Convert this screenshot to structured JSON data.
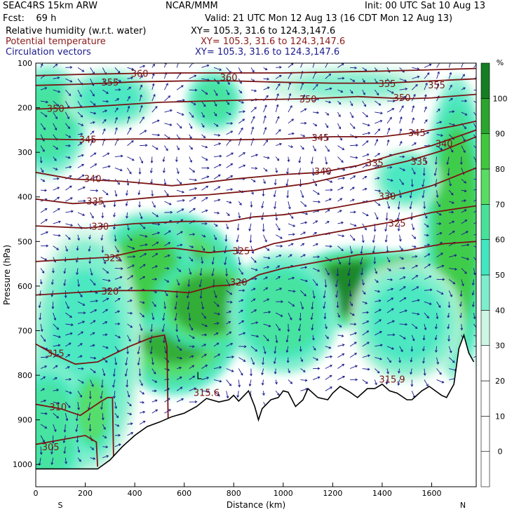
{
  "header": {
    "model": "SEAC4RS 15km ARW",
    "forecast": "Fcst:    69 h",
    "org": "NCAR/MMM",
    "init": "Init: 00 UTC Sat 10 Aug 13",
    "valid": "Valid: 21 UTC Mon 12 Aug 13 (16 CDT Mon 12 Aug 13)"
  },
  "fields": [
    {
      "name": "Relative humidity (w.r.t. water)",
      "xy": "XY= 105.3, 31.6 to 124.3,147.6",
      "color": "#000000"
    },
    {
      "name": "Potential temperature",
      "xy": "XY= 105.3, 31.6 to 124.3,147.6",
      "color": "#8b1a1a"
    },
    {
      "name": "Circulation vectors",
      "xy": "XY= 105.3, 31.6 to 124.3,147.6",
      "color": "#1a1a8c"
    }
  ],
  "chart_data": {
    "type": "heatmap",
    "xlabel": "Distance (km)",
    "ylabel": "Pressure (hPa)",
    "xlim": [
      0,
      1780
    ],
    "ylim": [
      1050,
      100
    ],
    "x_ticks": [
      0,
      200,
      400,
      600,
      800,
      1000,
      1200,
      1400,
      1600
    ],
    "y_ticks": [
      100,
      200,
      300,
      400,
      500,
      600,
      700,
      800,
      900,
      1000
    ],
    "end_labels": {
      "left": "S",
      "right": "N"
    },
    "colorbar": {
      "unit": "%",
      "levels": [
        -10,
        0,
        10,
        20,
        30,
        40,
        50,
        60,
        70,
        80,
        90,
        100,
        110
      ],
      "tick_labels": [
        0,
        10,
        20,
        30,
        40,
        50,
        60,
        70,
        80,
        90,
        100
      ],
      "colors": [
        "#ffffff",
        "#ffffff",
        "#ffffff",
        "#ffffff",
        "#cdf6e4",
        "#7deecd",
        "#42e6c0",
        "#47e29a",
        "#58dd63",
        "#40c83d",
        "#2aa52e",
        "#157d24"
      ]
    },
    "terrain": [
      [
        0,
        1010
      ],
      [
        250,
        1010
      ],
      [
        300,
        990
      ],
      [
        350,
        960
      ],
      [
        400,
        935
      ],
      [
        450,
        915
      ],
      [
        500,
        905
      ],
      [
        550,
        893
      ],
      [
        600,
        885
      ],
      [
        650,
        870
      ],
      [
        690,
        852
      ],
      [
        740,
        860
      ],
      [
        780,
        855
      ],
      [
        800,
        845
      ],
      [
        820,
        858
      ],
      [
        860,
        835
      ],
      [
        885,
        870
      ],
      [
        900,
        900
      ],
      [
        915,
        875
      ],
      [
        950,
        855
      ],
      [
        980,
        850
      ],
      [
        1000,
        835
      ],
      [
        1020,
        838
      ],
      [
        1050,
        870
      ],
      [
        1080,
        855
      ],
      [
        1100,
        830
      ],
      [
        1140,
        850
      ],
      [
        1180,
        855
      ],
      [
        1200,
        840
      ],
      [
        1230,
        825
      ],
      [
        1270,
        838
      ],
      [
        1300,
        850
      ],
      [
        1340,
        830
      ],
      [
        1370,
        830
      ],
      [
        1400,
        820
      ],
      [
        1430,
        835
      ],
      [
        1460,
        840
      ],
      [
        1500,
        855
      ],
      [
        1520,
        855
      ],
      [
        1560,
        835
      ],
      [
        1590,
        825
      ],
      [
        1640,
        845
      ],
      [
        1660,
        850
      ],
      [
        1690,
        820
      ],
      [
        1710,
        740
      ],
      [
        1730,
        710
      ],
      [
        1750,
        750
      ],
      [
        1770,
        770
      ]
    ],
    "theta_contours": [
      {
        "label": "305",
        "points": [
          [
            0,
            955
          ],
          [
            100,
            945
          ],
          [
            200,
            935
          ],
          [
            245,
            950
          ],
          [
            250,
            1005
          ]
        ]
      },
      {
        "label": "310",
        "points": [
          [
            0,
            865
          ],
          [
            100,
            875
          ],
          [
            180,
            890
          ],
          [
            260,
            860
          ],
          [
            290,
            850
          ],
          [
            310,
            850
          ],
          [
            315,
            1000
          ]
        ]
      },
      {
        "label": "315",
        "points": [
          [
            0,
            730
          ],
          [
            80,
            755
          ],
          [
            160,
            775
          ],
          [
            250,
            770
          ],
          [
            380,
            735
          ],
          [
            470,
            715
          ],
          [
            520,
            710
          ],
          [
            530,
            735
          ],
          [
            535,
            905
          ]
        ]
      },
      {
        "label": "320",
        "points": [
          [
            0,
            620
          ],
          [
            150,
            615
          ],
          [
            300,
            610
          ],
          [
            500,
            610
          ],
          [
            620,
            615
          ],
          [
            720,
            600
          ],
          [
            780,
            598
          ],
          [
            850,
            590
          ],
          [
            900,
            575
          ],
          [
            1000,
            560
          ],
          [
            1100,
            550
          ],
          [
            1300,
            530
          ],
          [
            1500,
            520
          ],
          [
            1650,
            505
          ],
          [
            1780,
            500
          ]
        ]
      },
      {
        "label": "325",
        "points": [
          [
            0,
            545
          ],
          [
            150,
            540
          ],
          [
            300,
            535
          ],
          [
            420,
            520
          ],
          [
            560,
            515
          ],
          [
            700,
            525
          ],
          [
            800,
            520
          ],
          [
            880,
            520
          ],
          [
            960,
            505
          ],
          [
            1100,
            490
          ],
          [
            1300,
            470
          ],
          [
            1450,
            455
          ],
          [
            1600,
            435
          ],
          [
            1780,
            420
          ]
        ]
      },
      {
        "label": "330",
        "points": [
          [
            0,
            465
          ],
          [
            200,
            470
          ],
          [
            400,
            460
          ],
          [
            600,
            455
          ],
          [
            780,
            455
          ],
          [
            880,
            445
          ],
          [
            1000,
            440
          ],
          [
            1200,
            425
          ],
          [
            1400,
            405
          ],
          [
            1600,
            375
          ],
          [
            1780,
            335
          ]
        ]
      },
      {
        "label": "335",
        "points": [
          [
            0,
            405
          ],
          [
            150,
            415
          ],
          [
            300,
            410
          ],
          [
            500,
            400
          ],
          [
            700,
            395
          ],
          [
            900,
            385
          ],
          [
            1100,
            370
          ],
          [
            1300,
            345
          ],
          [
            1500,
            320
          ],
          [
            1650,
            295
          ],
          [
            1780,
            265
          ]
        ]
      },
      {
        "label": "340",
        "points": [
          [
            0,
            345
          ],
          [
            150,
            360
          ],
          [
            350,
            365
          ],
          [
            550,
            375
          ],
          [
            650,
            370
          ],
          [
            800,
            360
          ],
          [
            1000,
            350
          ],
          [
            1150,
            345
          ],
          [
            1300,
            330
          ],
          [
            1450,
            305
          ],
          [
            1600,
            285
          ],
          [
            1780,
            250
          ]
        ]
      },
      {
        "label": "345",
        "points": [
          [
            0,
            270
          ],
          [
            200,
            272
          ],
          [
            400,
            270
          ],
          [
            600,
            270
          ],
          [
            800,
            272
          ],
          [
            1000,
            270
          ],
          [
            1200,
            265
          ],
          [
            1400,
            265
          ],
          [
            1550,
            255
          ],
          [
            1700,
            240
          ],
          [
            1780,
            230
          ]
        ]
      },
      {
        "label": "350",
        "points": [
          [
            0,
            203
          ],
          [
            150,
            200
          ],
          [
            300,
            195
          ],
          [
            500,
            188
          ],
          [
            700,
            185
          ],
          [
            900,
            182
          ],
          [
            1100,
            180
          ],
          [
            1300,
            175
          ],
          [
            1500,
            180
          ],
          [
            1600,
            178
          ],
          [
            1780,
            170
          ]
        ]
      },
      {
        "label": "355",
        "points": [
          [
            0,
            150
          ],
          [
            200,
            147
          ],
          [
            400,
            142
          ],
          [
            600,
            140
          ],
          [
            800,
            140
          ],
          [
            1000,
            143
          ],
          [
            1200,
            145
          ],
          [
            1400,
            145
          ],
          [
            1600,
            140
          ],
          [
            1780,
            135
          ]
        ]
      },
      {
        "label": "360",
        "points": [
          [
            0,
            128
          ],
          [
            200,
            125
          ],
          [
            400,
            123
          ],
          [
            600,
            122
          ],
          [
            800,
            122
          ],
          [
            1000,
            122
          ],
          [
            1200,
            120
          ],
          [
            1400,
            118
          ],
          [
            1600,
            115
          ],
          [
            1780,
            112
          ]
        ]
      }
    ],
    "theta_labels": [
      {
        "label": "305",
        "x": 60,
        "p": 962
      },
      {
        "label": "310",
        "x": 90,
        "p": 872
      },
      {
        "label": "315",
        "x": 80,
        "p": 752
      },
      {
        "label": "315.6",
        "x": 690,
        "p": 840
      },
      {
        "label": "315.9",
        "x": 1440,
        "p": 810
      },
      {
        "label": "320",
        "x": 300,
        "p": 613
      },
      {
        "label": "320",
        "x": 820,
        "p": 592
      },
      {
        "label": "325",
        "x": 310,
        "p": 538
      },
      {
        "label": "325",
        "x": 830,
        "p": 522
      },
      {
        "label": "325",
        "x": 1460,
        "p": 460
      },
      {
        "label": "330",
        "x": 260,
        "p": 467
      },
      {
        "label": "330",
        "x": 1420,
        "p": 400
      },
      {
        "label": "335",
        "x": 240,
        "p": 411
      },
      {
        "label": "335",
        "x": 1370,
        "p": 325
      },
      {
        "label": "335",
        "x": 1550,
        "p": 322
      },
      {
        "label": "340",
        "x": 230,
        "p": 360
      },
      {
        "label": "340",
        "x": 1160,
        "p": 344
      },
      {
        "label": "340",
        "x": 1650,
        "p": 282
      },
      {
        "label": "345",
        "x": 210,
        "p": 272
      },
      {
        "label": "345",
        "x": 1150,
        "p": 268
      },
      {
        "label": "345",
        "x": 1540,
        "p": 257
      },
      {
        "label": "350",
        "x": 80,
        "p": 203
      },
      {
        "label": "350",
        "x": 1100,
        "p": 182
      },
      {
        "label": "350",
        "x": 1480,
        "p": 179
      },
      {
        "label": "355",
        "x": 300,
        "p": 144
      },
      {
        "label": "355",
        "x": 1420,
        "p": 147
      },
      {
        "label": "355",
        "x": 1620,
        "p": 150
      },
      {
        "label": "360",
        "x": 420,
        "p": 124
      },
      {
        "label": "360",
        "x": 780,
        "p": 133
      }
    ],
    "annotations": [
      {
        "text": "L",
        "x": 660,
        "p": 802
      }
    ],
    "rh_blobs": [
      {
        "x": 560,
        "p": 640,
        "rx": 260,
        "rp": 180,
        "v": 95
      },
      {
        "x": 1300,
        "p": 605,
        "rx": 260,
        "rp": 80,
        "v": 100
      },
      {
        "x": 1480,
        "p": 590,
        "rx": 140,
        "rp": 60,
        "v": 100
      },
      {
        "x": 440,
        "p": 570,
        "rx": 180,
        "rp": 120,
        "v": 80
      },
      {
        "x": 700,
        "p": 640,
        "rx": 200,
        "rp": 90,
        "v": 95
      },
      {
        "x": 200,
        "p": 750,
        "rx": 200,
        "rp": 250,
        "v": 55
      },
      {
        "x": 50,
        "p": 920,
        "rx": 150,
        "rp": 140,
        "v": 60
      },
      {
        "x": 230,
        "p": 880,
        "rx": 80,
        "rp": 90,
        "v": 75
      },
      {
        "x": 1000,
        "p": 660,
        "rx": 200,
        "rp": 120,
        "v": 60
      },
      {
        "x": 1700,
        "p": 470,
        "rx": 120,
        "rp": 300,
        "v": 80
      },
      {
        "x": 50,
        "p": 230,
        "rx": 140,
        "rp": 110,
        "v": 60
      },
      {
        "x": 300,
        "p": 180,
        "rx": 160,
        "rp": 60,
        "v": 50
      },
      {
        "x": 720,
        "p": 185,
        "rx": 100,
        "rp": 60,
        "v": 60
      },
      {
        "x": 1500,
        "p": 360,
        "rx": 120,
        "rp": 60,
        "v": 50
      },
      {
        "x": 1270,
        "p": 150,
        "rx": 300,
        "rp": 40,
        "v": 40
      },
      {
        "x": 1500,
        "p": 680,
        "rx": 200,
        "rp": 120,
        "v": 55
      }
    ]
  }
}
